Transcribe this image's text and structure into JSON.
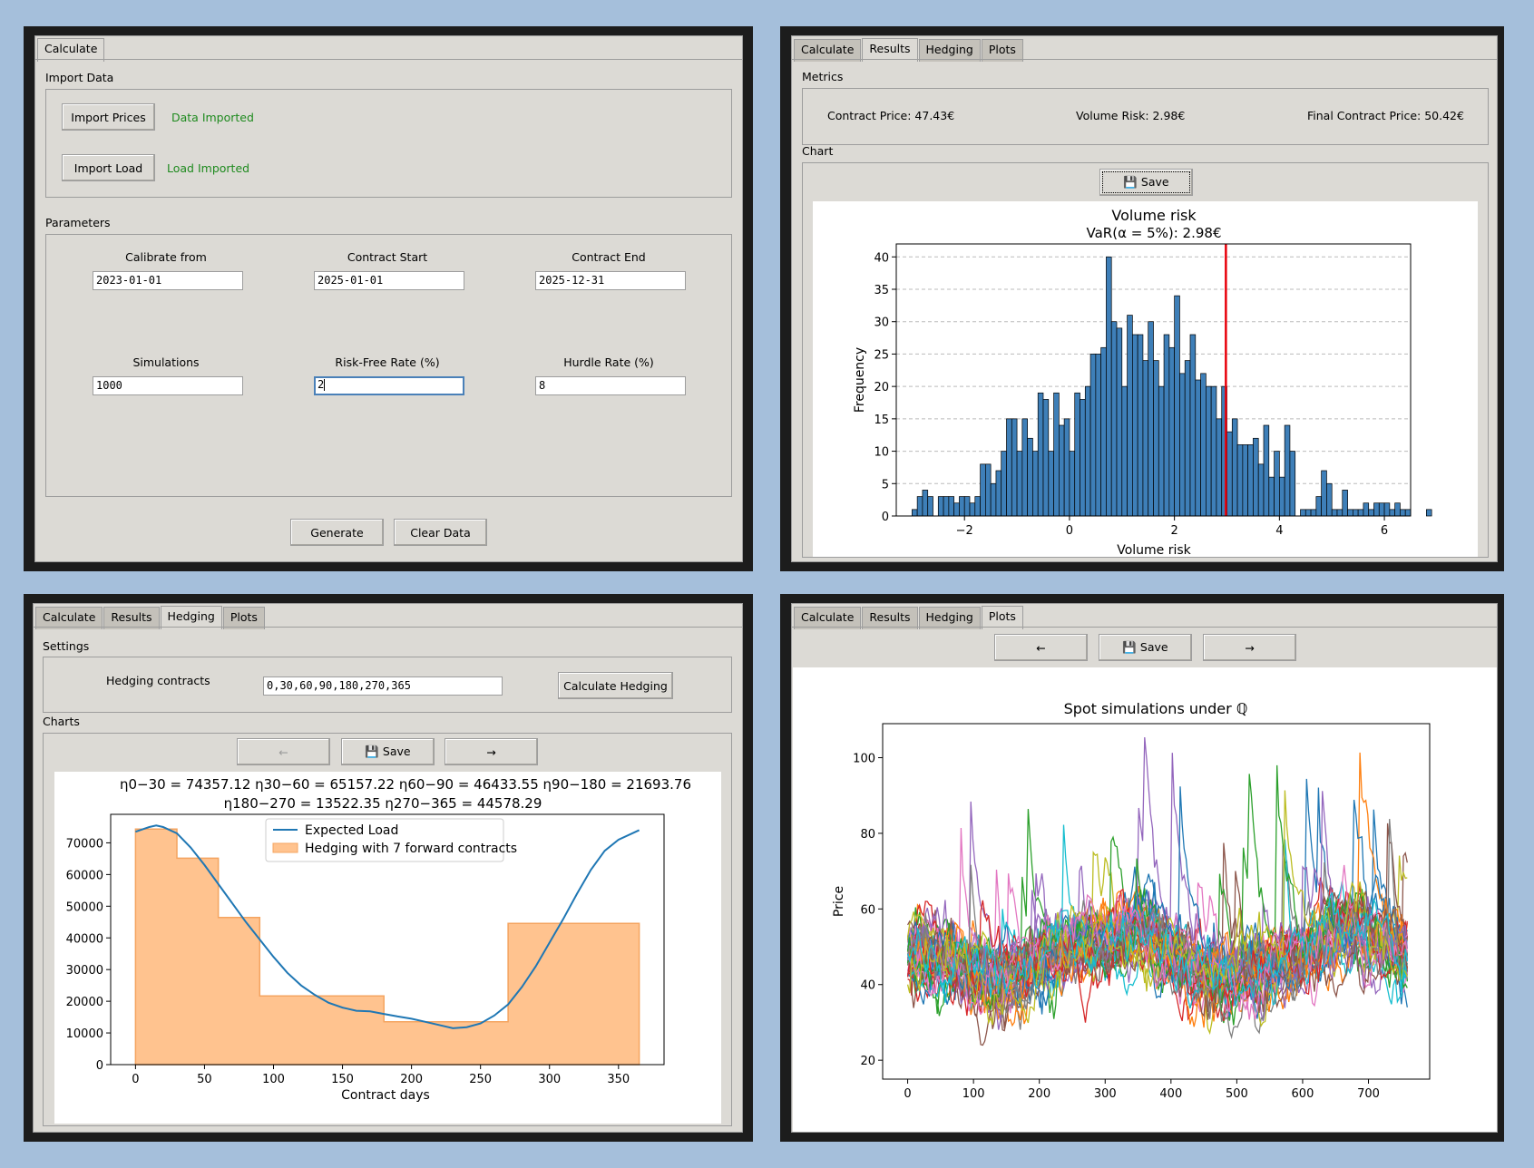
{
  "tabs": {
    "calculate": "Calculate",
    "results": "Results",
    "hedging": "Hedging",
    "plots": "Plots"
  },
  "calculate": {
    "import_section": "Import Data",
    "import_prices_button": "Import Prices",
    "prices_status": "Data Imported",
    "import_load_button": "Import Load",
    "load_status": "Load Imported",
    "params_section": "Parameters",
    "fields": {
      "calibrate_from": {
        "label": "Calibrate from",
        "value": "2023-01-01"
      },
      "contract_start": {
        "label": "Contract Start",
        "value": "2025-01-01"
      },
      "contract_end": {
        "label": "Contract End",
        "value": "2025-12-31"
      },
      "simulations": {
        "label": "Simulations",
        "value": "1000"
      },
      "risk_free": {
        "label": "Risk-Free Rate (%)",
        "value": "2"
      },
      "hurdle": {
        "label": "Hurdle Rate (%)",
        "value": "8"
      }
    },
    "generate_button": "Generate",
    "clear_button": "Clear Data"
  },
  "results": {
    "metrics_section": "Metrics",
    "contract_price": "Contract Price: 47.43€",
    "volume_risk": "Volume Risk: 2.98€",
    "final_price": "Final Contract Price: 50.42€",
    "chart_section": "Chart",
    "save_button": "💾 Save"
  },
  "hedging": {
    "settings_section": "Settings",
    "contracts_label": "Hedging contracts",
    "contracts_value": "0,30,60,90,180,270,365",
    "calc_button": "Calculate Hedging",
    "charts_section": "Charts",
    "prev_button": "←",
    "save_button": "💾 Save",
    "next_button": "→"
  },
  "plots": {
    "prev_button": "←",
    "save_button": "💾 Save",
    "next_button": "→"
  },
  "colors": {
    "hist_bar": "#3e7fb8",
    "var_line": "#e8000b",
    "load_line": "#1f77b4",
    "hedge_fill": "#ffc38f",
    "hedge_edge": "#f4a460"
  },
  "chart_data": [
    {
      "type": "bar",
      "title": "Volume risk",
      "subtitle": "VaR(α = 5%): 2.98€",
      "xlabel": "Volume risk",
      "ylabel": "Frequency",
      "xlim": [
        -3.3,
        6.5
      ],
      "ylim": [
        0,
        42
      ],
      "xticks": [
        -2,
        0,
        2,
        4,
        6
      ],
      "xtick_labels": [
        "−2",
        "0",
        "2",
        "4",
        "6"
      ],
      "yticks": [
        0,
        5,
        10,
        15,
        20,
        25,
        30,
        35,
        40
      ],
      "grid": "y-dashed",
      "bin_start": -3.0,
      "bin_width": 0.1,
      "values": [
        1,
        3,
        4,
        3,
        0,
        3,
        3,
        3,
        2,
        3,
        3,
        2,
        3,
        8,
        8,
        5,
        7,
        10,
        15,
        15,
        10,
        15,
        12,
        10,
        19,
        18,
        10,
        19,
        14,
        15,
        10,
        19,
        18,
        20,
        25,
        25,
        26,
        40,
        30,
        29,
        20,
        31,
        28,
        28,
        24,
        30,
        24,
        20,
        28,
        26,
        34,
        22,
        24,
        28,
        21,
        22,
        20,
        20,
        15,
        20,
        13,
        15,
        11,
        11,
        11,
        12,
        8,
        14,
        6,
        10,
        6,
        14,
        10,
        0,
        1,
        1,
        1,
        3,
        7,
        5,
        1,
        1,
        4,
        1,
        1,
        1,
        2,
        1,
        2,
        2,
        2,
        1,
        2,
        1,
        1,
        0,
        0,
        0,
        1,
        0,
        0,
        0,
        0,
        0,
        0,
        0,
        0,
        0,
        0,
        0,
        0,
        1
      ],
      "var_value": 2.98
    },
    {
      "type": "area",
      "title_line1": "η0−30 = 74357.12   η30−60 = 65157.22   η60−90 = 46433.55   η90−180 = 21693.76",
      "title_line2": "η180−270 = 13522.35   η270−365 = 44578.29",
      "xlabel": "Contract days",
      "xlim": [
        -18,
        383
      ],
      "ylim": [
        0,
        79000
      ],
      "xticks": [
        0,
        50,
        100,
        150,
        200,
        250,
        300,
        350
      ],
      "yticks": [
        0,
        10000,
        20000,
        30000,
        40000,
        50000,
        60000,
        70000
      ],
      "legend": [
        "Expected Load",
        "Hedging with 7 forward contracts"
      ],
      "legend_position": "upper-center",
      "hedge_steps": [
        {
          "from": 0,
          "to": 30,
          "value": 74357.12
        },
        {
          "from": 30,
          "to": 60,
          "value": 65157.22
        },
        {
          "from": 60,
          "to": 90,
          "value": 46433.55
        },
        {
          "from": 90,
          "to": 180,
          "value": 21693.76
        },
        {
          "from": 180,
          "to": 270,
          "value": 13522.35
        },
        {
          "from": 270,
          "to": 365,
          "value": 44578.29
        }
      ],
      "load_x": [
        0,
        10,
        15,
        20,
        30,
        40,
        50,
        60,
        70,
        80,
        90,
        100,
        110,
        120,
        130,
        140,
        150,
        160,
        170,
        180,
        190,
        200,
        210,
        220,
        230,
        240,
        250,
        260,
        270,
        280,
        290,
        300,
        310,
        320,
        330,
        340,
        350,
        365
      ],
      "load_y": [
        73500,
        75000,
        75500,
        75000,
        73000,
        68500,
        63000,
        57000,
        51000,
        45000,
        39500,
        34000,
        29000,
        25000,
        22000,
        19500,
        18000,
        17000,
        16800,
        16000,
        15200,
        14500,
        13500,
        12500,
        11500,
        11800,
        13000,
        15500,
        19000,
        24500,
        31000,
        38500,
        46000,
        54000,
        61500,
        67500,
        71000,
        74000
      ]
    },
    {
      "type": "line",
      "title": "Spot simulations under ℚ",
      "ylabel": "Price",
      "xlim": [
        -38,
        793
      ],
      "ylim": [
        15,
        109
      ],
      "xticks": [
        0,
        100,
        200,
        300,
        400,
        500,
        600,
        700
      ],
      "yticks": [
        20,
        40,
        60,
        80,
        100
      ],
      "n_points": 760,
      "series_colors": [
        "#1f77b4",
        "#ff7f0e",
        "#2ca02c",
        "#d62728",
        "#9467bd",
        "#8c564b",
        "#e377c2",
        "#7f7f7f",
        "#bcbd22",
        "#17becf"
      ]
    }
  ]
}
